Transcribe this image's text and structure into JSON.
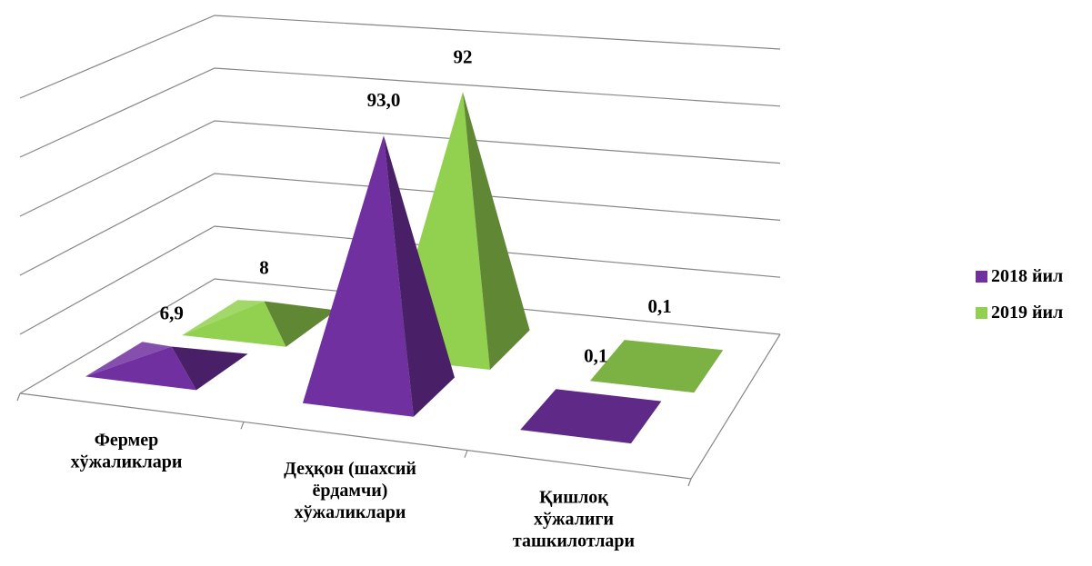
{
  "chart_data": {
    "type": "bar",
    "shape": "3d-pyramid",
    "categories": [
      [
        "Фермер",
        "хўжаликлари"
      ],
      [
        "Деҳқон (шахсий",
        "ёрдамчи)",
        "хўжаликлари"
      ],
      [
        "Қишлоқ",
        "хўжалиги",
        "ташкилотлари"
      ]
    ],
    "series": [
      {
        "name": "2018 йил",
        "values": [
          6.9,
          93.0,
          0.1
        ],
        "labels": [
          "6,9",
          "93,0",
          "0,1"
        ],
        "color": "#7030a0"
      },
      {
        "name": "2019 йил",
        "values": [
          8,
          92,
          0.1
        ],
        "labels": [
          "8",
          "92",
          "0,1"
        ],
        "color": "#92d050"
      }
    ],
    "ylim": [
      0,
      100
    ],
    "gridlines": true,
    "legend_position": "right"
  }
}
